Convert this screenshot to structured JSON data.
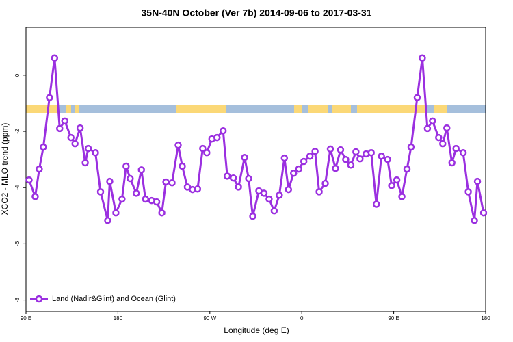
{
  "chart_data": {
    "type": "line",
    "title": "35N-40N October (Ver 7b)   2014-09-06 to 2017-03-31",
    "xlabel": "Longitude (deg E)",
    "ylabel": "XCO2 - MLO trend (ppm)",
    "xlim": [
      90,
      540
    ],
    "ylim": [
      -8.4,
      1.7
    ],
    "xticks": [
      {
        "value": 90,
        "label": "90 E"
      },
      180,
      {
        "value": 270,
        "label": "90 W"
      },
      {
        "value": 360,
        "label": "0"
      },
      {
        "value": 450,
        "label": "90 E"
      },
      {
        "value": 540,
        "label": "180"
      }
    ],
    "yticks": [
      0,
      -2,
      -4,
      -6,
      -8
    ],
    "legend": "lower left",
    "x": [
      93,
      99,
      103,
      107,
      113,
      118,
      123,
      128,
      134,
      138,
      143,
      148,
      151,
      158,
      163,
      170,
      172,
      178,
      184,
      188,
      192,
      198,
      203,
      207,
      213,
      218,
      223,
      227,
      233,
      239,
      243,
      248,
      253,
      258,
      263,
      267,
      272,
      277,
      283,
      287,
      293,
      298,
      304,
      308,
      312,
      318,
      323,
      328,
      333,
      338,
      343,
      347,
      352,
      357,
      362,
      368,
      373,
      377,
      383,
      388,
      393,
      398,
      403,
      408,
      413,
      417,
      423,
      428,
      433,
      438,
      444,
      448,
      453,
      458,
      463,
      467,
      473,
      478,
      483,
      488,
      494,
      498,
      502,
      507,
      511,
      518,
      523,
      529,
      532,
      538
    ],
    "series": [
      {
        "name": "Land (Nadir&Glint) and Ocean (Glint)",
        "color": "#9b30e0",
        "values": [
          -3.73,
          -4.32,
          -3.34,
          -2.56,
          -0.8,
          0.61,
          -1.9,
          -1.63,
          -2.22,
          -2.44,
          -1.88,
          -3.12,
          -2.61,
          -2.76,
          -4.15,
          -5.17,
          -3.78,
          -4.9,
          -4.41,
          -3.24,
          -3.68,
          -4.2,
          -3.37,
          -4.41,
          -4.46,
          -4.51,
          -4.9,
          -3.8,
          -3.83,
          -2.49,
          -3.24,
          -3.98,
          -4.07,
          -4.05,
          -2.61,
          -2.76,
          -2.27,
          -2.22,
          -1.98,
          -3.59,
          -3.66,
          -3.98,
          -2.93,
          -3.68,
          -5.02,
          -4.12,
          -4.2,
          -4.41,
          -4.83,
          -4.27,
          -2.95,
          -4.07,
          -3.49,
          -3.34,
          -3.07,
          -2.88,
          -2.71,
          -4.15,
          -3.85,
          -2.63,
          -3.32,
          -2.66,
          -3.0,
          -3.2,
          -2.73,
          -2.98,
          -2.8,
          -2.76,
          -4.59,
          -2.88,
          -3.0,
          -3.93,
          -3.73,
          -4.32,
          -3.34,
          -2.56,
          -0.8,
          0.61,
          -1.9,
          -1.63,
          -2.22,
          -2.44,
          -1.88,
          -3.12,
          -2.61,
          -2.76,
          -4.15,
          -5.17,
          -3.78,
          -4.9
        ]
      }
    ]
  }
}
